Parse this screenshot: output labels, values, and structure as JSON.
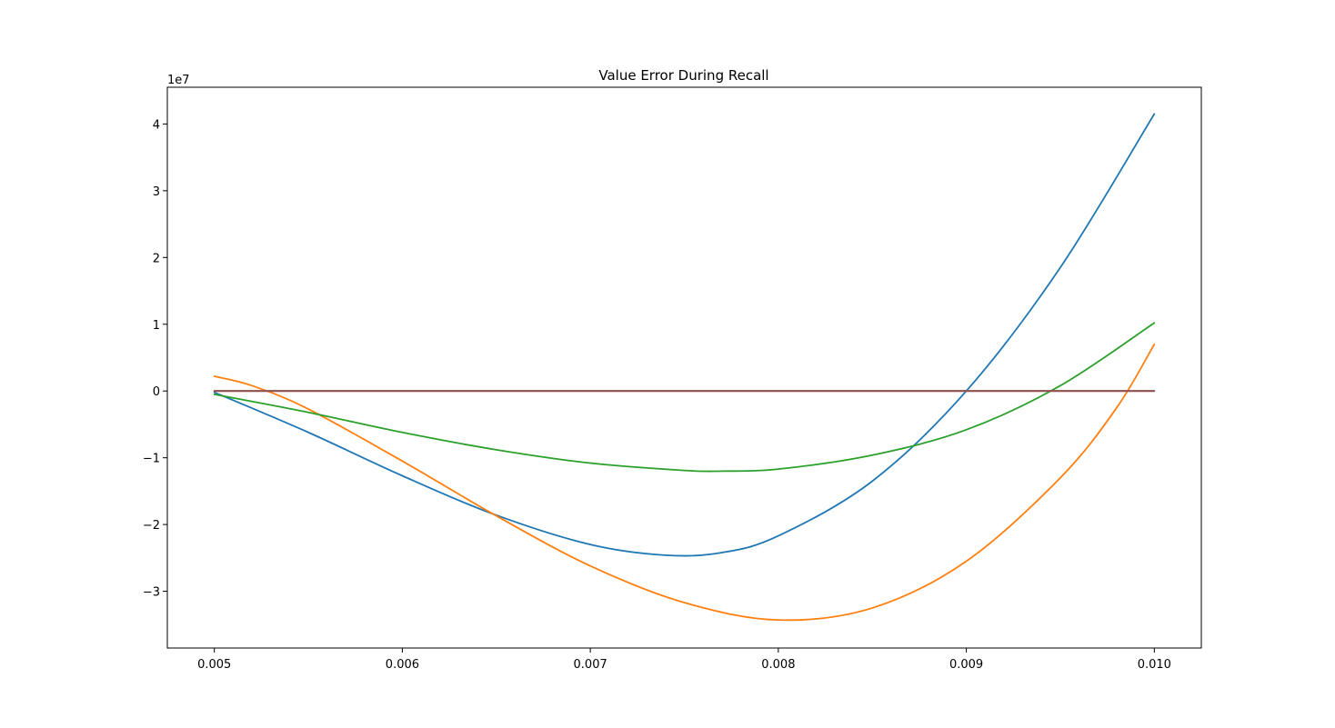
{
  "chart_data": {
    "type": "line",
    "title": "Value Error During Recall",
    "xlabel": "",
    "ylabel": "",
    "y_offset_label": "1e7",
    "xlim": [
      0.00475,
      0.01025
    ],
    "ylim": [
      -3.85,
      4.55
    ],
    "y_scale_factor": 10000000,
    "x_ticks": [
      0.005,
      0.006,
      0.007,
      0.008,
      0.009,
      0.01
    ],
    "x_tick_labels": [
      "0.005",
      "0.006",
      "0.007",
      "0.008",
      "0.009",
      "0.010"
    ],
    "y_ticks": [
      -3,
      -2,
      -1,
      0,
      1,
      2,
      3,
      4
    ],
    "y_tick_labels": [
      "−3",
      "−2",
      "−1",
      "0",
      "1",
      "2",
      "3",
      "4"
    ],
    "grid": false,
    "legend": "none",
    "series": [
      {
        "color": "#1f77b4",
        "x": [
          0.005,
          0.0055,
          0.006,
          0.0065,
          0.007,
          0.0074,
          0.0077,
          0.008,
          0.0085,
          0.009,
          0.0095,
          0.01
        ],
        "y": [
          -0.02,
          -0.62,
          -1.27,
          -1.86,
          -2.3,
          -2.46,
          -2.42,
          -2.17,
          -1.35,
          0.0,
          1.85,
          4.15
        ]
      },
      {
        "color": "#ff7f0e",
        "x": [
          0.005,
          0.0052,
          0.0055,
          0.006,
          0.0065,
          0.007,
          0.0075,
          0.008,
          0.0085,
          0.009,
          0.0095,
          0.0098,
          0.01
        ],
        "y": [
          0.22,
          0.08,
          -0.27,
          -1.05,
          -1.87,
          -2.62,
          -3.17,
          -3.43,
          -3.25,
          -2.55,
          -1.3,
          -0.25,
          0.7
        ]
      },
      {
        "color": "#2ca02c",
        "x": [
          0.005,
          0.0055,
          0.006,
          0.0065,
          0.007,
          0.0075,
          0.0077,
          0.008,
          0.0085,
          0.009,
          0.0095,
          0.01
        ],
        "y": [
          -0.05,
          -0.32,
          -0.62,
          -0.88,
          -1.08,
          -1.19,
          -1.2,
          -1.17,
          -0.96,
          -0.58,
          0.08,
          1.02
        ]
      },
      {
        "color": "#d62728",
        "x": [
          0.005,
          0.01
        ],
        "y": [
          0.0,
          0.0
        ]
      },
      {
        "color": "#9467bd",
        "x": [
          0.005,
          0.01
        ],
        "y": [
          0.0,
          0.0
        ]
      },
      {
        "color": "#8c564b",
        "x": [
          0.005,
          0.01
        ],
        "y": [
          0.0,
          0.0
        ]
      }
    ]
  }
}
